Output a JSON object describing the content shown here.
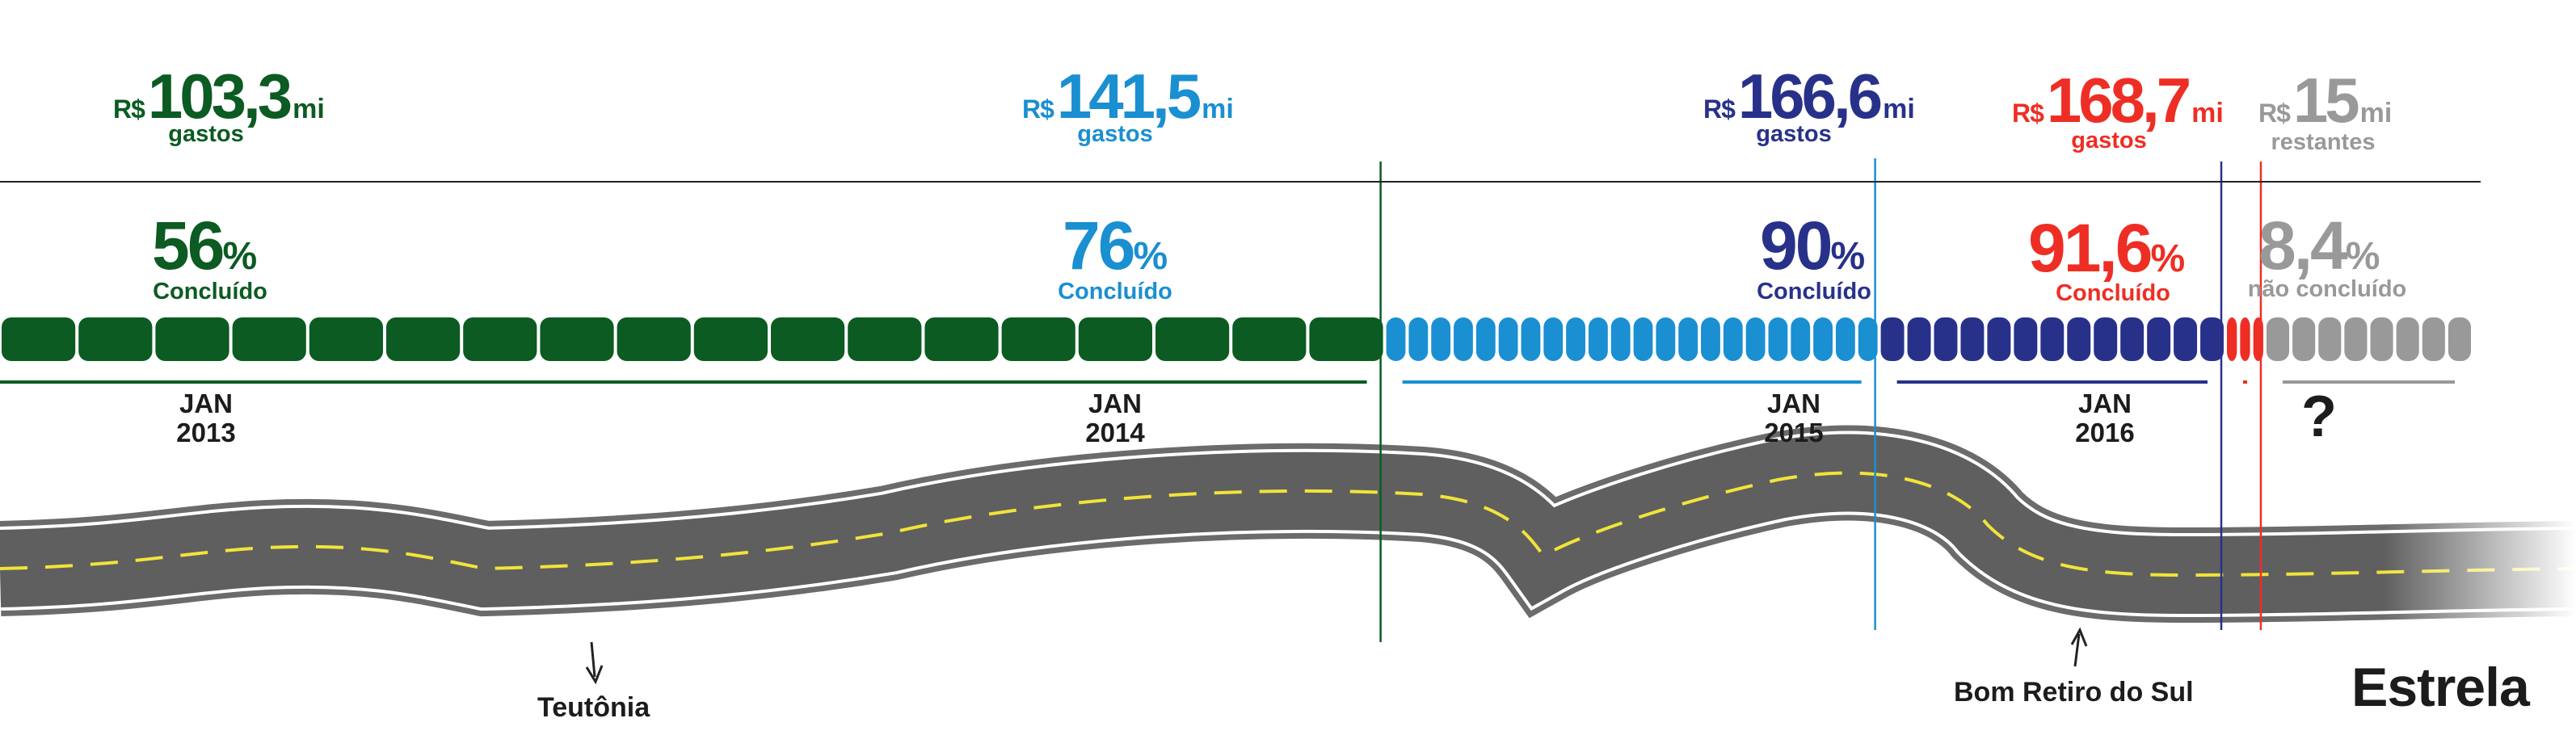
{
  "chart_data": {
    "type": "bar",
    "title": "",
    "segments": [
      {
        "currency": "R$",
        "amount": "103,3",
        "unit": "mi",
        "amount_label": "gastos",
        "percent": "56",
        "percent_symbol": "%",
        "status": "Concluído",
        "period": [
          "JAN",
          "2013"
        ],
        "value": 56,
        "color": "#0b5b22"
      },
      {
        "currency": "R$",
        "amount": "141,5",
        "unit": "mi",
        "amount_label": "gastos",
        "percent": "76",
        "percent_symbol": "%",
        "status": "Concluído",
        "period": [
          "JAN",
          "2014"
        ],
        "value": 76,
        "color": "#1a8fd1"
      },
      {
        "currency": "R$",
        "amount": "166,6",
        "unit": "mi",
        "amount_label": "gastos",
        "percent": "90",
        "percent_symbol": "%",
        "status": "Concluído",
        "period": [
          "JAN",
          "2015"
        ],
        "value": 90,
        "color": "#28318a"
      },
      {
        "currency": "R$",
        "amount": "168,7",
        "unit": "mi",
        "amount_label": "gastos",
        "percent": "91,6",
        "percent_symbol": "%",
        "status": "Concluído",
        "period": [
          "JAN",
          "2016"
        ],
        "value": 91.6,
        "color": "#ee2e24"
      },
      {
        "currency": "R$",
        "amount": "15",
        "unit": "mi",
        "amount_label": "restantes",
        "percent": "8,4",
        "percent_symbol": "%",
        "status": "não concluído",
        "period": [
          "?"
        ],
        "value": 100,
        "color": "#999999"
      }
    ],
    "block_counts": [
      18,
      22,
      13,
      3,
      8
    ],
    "locations": [
      {
        "name": "Teutônia"
      },
      {
        "name": "Bom Retiro do Sul"
      },
      {
        "name": "Estrela"
      }
    ]
  }
}
